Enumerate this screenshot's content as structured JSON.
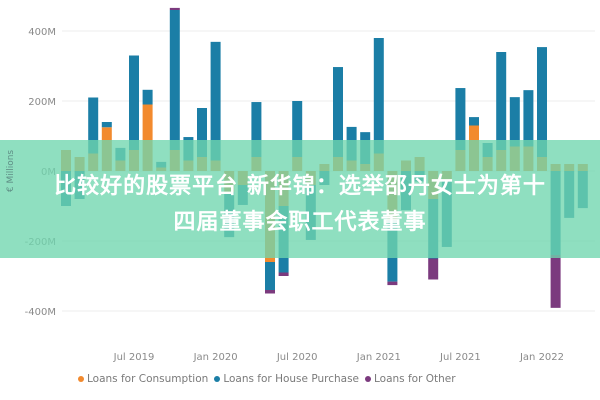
{
  "chart_data": {
    "type": "bar",
    "stacked": true,
    "ylabel": "€ Millions",
    "ylim": [
      -450,
      480
    ],
    "yticks": [
      "400M",
      "200M",
      "0M",
      "-200M",
      "-400M"
    ],
    "ytick_values": [
      400,
      200,
      0,
      -200,
      -400
    ],
    "grid": true,
    "legend_position": "bottom",
    "xtick_labels": [
      "Jul 2019",
      "Jan 2020",
      "Jul 2020",
      "Jan 2021",
      "Jul 2021",
      "Jan 2022"
    ],
    "xtick_months": [
      "2019-07",
      "2020-01",
      "2020-07",
      "2021-01",
      "2021-07",
      "2022-01"
    ],
    "categories": [
      "2019-02",
      "2019-03",
      "2019-04",
      "2019-05",
      "2019-06",
      "2019-07",
      "2019-08",
      "2019-09",
      "2019-10",
      "2019-11",
      "2019-12",
      "2020-01",
      "2020-02",
      "2020-03",
      "2020-04",
      "2020-05",
      "2020-06",
      "2020-07",
      "2020-08",
      "2020-09",
      "2020-10",
      "2020-11",
      "2020-12",
      "2021-01",
      "2021-02",
      "2021-03",
      "2021-04",
      "2021-05",
      "2021-06",
      "2021-07",
      "2021-08",
      "2021-09",
      "2021-10",
      "2021-11",
      "2021-12",
      "2022-01",
      "2022-02",
      "2022-03",
      "2022-04"
    ],
    "series": [
      {
        "name": "Loans for Consumption",
        "color": "#f28a2e",
        "values": [
          60,
          40,
          50,
          125,
          30,
          60,
          190,
          10,
          60,
          30,
          40,
          30,
          -60,
          -40,
          40,
          -260,
          -100,
          40,
          -40,
          20,
          40,
          30,
          20,
          50,
          -140,
          30,
          40,
          -80,
          -30,
          60,
          130,
          40,
          60,
          70,
          70,
          40,
          20,
          20,
          20
        ]
      },
      {
        "name": "Loans for House Purchase",
        "color": "#1b7ea6",
        "values": [
          -100,
          -80,
          160,
          15,
          36,
          270,
          42,
          16,
          400,
          67,
          140,
          339,
          -129,
          -57,
          157,
          -80,
          -190,
          160,
          -157,
          -40,
          257,
          96,
          91,
          330,
          -176,
          -112,
          -30,
          -170,
          -187,
          177,
          24,
          40,
          280,
          141,
          161,
          314,
          -240,
          -134,
          -106
        ]
      },
      {
        "name": "Loans for Other",
        "color": "#7b3a7e",
        "values": [
          0,
          0,
          0,
          0,
          0,
          0,
          0,
          0,
          6,
          0,
          0,
          0,
          0,
          0,
          0,
          -10,
          -10,
          0,
          0,
          0,
          0,
          0,
          0,
          0,
          -10,
          0,
          0,
          -60,
          0,
          0,
          0,
          0,
          0,
          0,
          0,
          0,
          -151,
          0,
          0
        ]
      }
    ]
  },
  "overlay": {
    "line1": "比较好的股票平台 新华锦：选举邵丹女士为第十",
    "line2": "四届董事会职工代表董事"
  }
}
